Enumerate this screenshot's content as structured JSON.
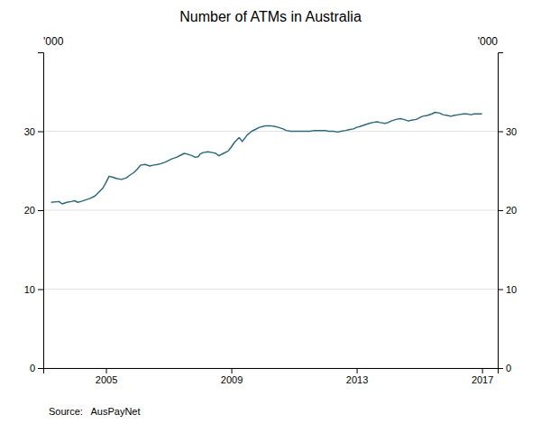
{
  "chart_data": {
    "type": "line",
    "title": "Number of ATMs in Australia",
    "ylabel": "'000",
    "y2label": "'000",
    "annotations": [
      "Source:   AusPayNet"
    ],
    "color": "#2e6b7a",
    "grid": true,
    "xlim": [
      2003.0,
      2017.5
    ],
    "xticks": [
      2005,
      2009,
      2013,
      2017
    ],
    "ylim": [
      0,
      40
    ],
    "yticks": [
      0,
      10,
      20,
      30
    ],
    "y2lim": [
      0,
      40
    ],
    "y2ticks": [
      0,
      10,
      20,
      30
    ],
    "x": [
      2003.25,
      2003.5,
      2003.6,
      2003.75,
      2003.9,
      2004.0,
      2004.1,
      2004.2,
      2004.35,
      2004.5,
      2004.65,
      2004.75,
      2004.9,
      2005.0,
      2005.1,
      2005.2,
      2005.35,
      2005.5,
      2005.65,
      2005.75,
      2005.9,
      2006.0,
      2006.1,
      2006.25,
      2006.4,
      2006.5,
      2006.65,
      2006.75,
      2006.9,
      2007.0,
      2007.1,
      2007.25,
      2007.4,
      2007.5,
      2007.6,
      2007.75,
      2007.85,
      2007.95,
      2008.0,
      2008.1,
      2008.25,
      2008.4,
      2008.5,
      2008.6,
      2008.75,
      2008.9,
      2009.0,
      2009.1,
      2009.25,
      2009.35,
      2009.5,
      2009.65,
      2009.75,
      2009.9,
      2010.0,
      2010.1,
      2010.25,
      2010.4,
      2010.5,
      2010.65,
      2010.75,
      2010.9,
      2011.0,
      2011.1,
      2011.25,
      2011.4,
      2011.5,
      2011.65,
      2011.75,
      2011.9,
      2012.0,
      2012.1,
      2012.25,
      2012.4,
      2012.5,
      2012.65,
      2012.75,
      2012.9,
      2013.0,
      2013.1,
      2013.25,
      2013.4,
      2013.5,
      2013.65,
      2013.75,
      2013.9,
      2014.0,
      2014.1,
      2014.25,
      2014.4,
      2014.5,
      2014.65,
      2014.75,
      2014.9,
      2015.0,
      2015.1,
      2015.25,
      2015.4,
      2015.5,
      2015.65,
      2015.75,
      2015.9,
      2016.0,
      2016.1,
      2016.25,
      2016.4,
      2016.5,
      2016.65,
      2016.75,
      2016.9,
      2017.0
    ],
    "values": [
      21.0,
      21.1,
      20.8,
      21.0,
      21.1,
      21.2,
      21.0,
      21.1,
      21.3,
      21.5,
      21.8,
      22.2,
      22.8,
      23.5,
      24.3,
      24.2,
      24.0,
      23.9,
      24.1,
      24.4,
      24.8,
      25.2,
      25.7,
      25.8,
      25.6,
      25.7,
      25.8,
      25.9,
      26.1,
      26.3,
      26.5,
      26.7,
      27.0,
      27.2,
      27.1,
      26.9,
      26.7,
      26.8,
      27.1,
      27.3,
      27.4,
      27.3,
      27.2,
      26.9,
      27.2,
      27.5,
      28.0,
      28.6,
      29.2,
      28.7,
      29.5,
      30.0,
      30.2,
      30.5,
      30.6,
      30.7,
      30.7,
      30.6,
      30.5,
      30.3,
      30.1,
      30.0,
      30.0,
      30.0,
      30.0,
      30.0,
      30.0,
      30.1,
      30.1,
      30.1,
      30.1,
      30.0,
      30.0,
      29.9,
      30.0,
      30.1,
      30.2,
      30.3,
      30.5,
      30.6,
      30.8,
      31.0,
      31.1,
      31.2,
      31.1,
      31.0,
      31.1,
      31.3,
      31.5,
      31.6,
      31.5,
      31.3,
      31.4,
      31.5,
      31.7,
      31.9,
      32.0,
      32.2,
      32.4,
      32.3,
      32.1,
      32.0,
      31.9,
      32.0,
      32.1,
      32.2,
      32.2,
      32.1,
      32.2,
      32.2,
      32.2
    ]
  }
}
